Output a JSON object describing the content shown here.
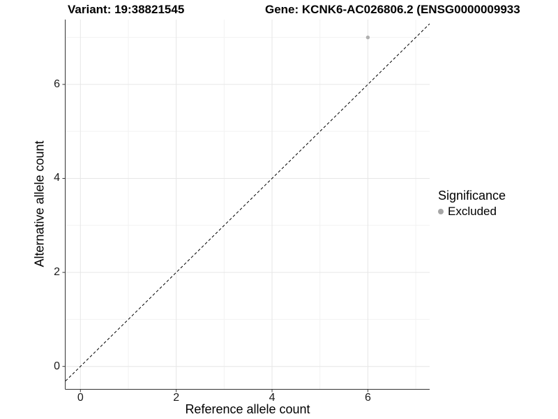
{
  "chart_data": {
    "type": "scatter",
    "titles": {
      "variant": "Variant: 19:38821545",
      "gene": "Gene: KCNK6-AC026806.2 (ENSG0000009933"
    },
    "xlabel": "Reference allele count",
    "ylabel": "Alternative allele count",
    "xlim": [
      -0.31,
      7.29
    ],
    "ylim": [
      -0.48,
      7.38
    ],
    "x_major_ticks": [
      0,
      2,
      4,
      6
    ],
    "x_minor_ticks": [
      1,
      3,
      5,
      7
    ],
    "y_major_ticks": [
      0,
      2,
      4,
      6
    ],
    "y_minor_ticks": [
      1,
      3,
      5,
      7
    ],
    "grid": "major+minor",
    "points": [
      {
        "x": 6,
        "y": 7,
        "series": "Excluded"
      }
    ],
    "reference_line": {
      "type": "identity",
      "slope": 1,
      "intercept": 0,
      "style": "dashed"
    },
    "legend": {
      "title": "Significance",
      "position": "right",
      "items": [
        {
          "label": "Excluded",
          "marker": "circle"
        }
      ]
    },
    "colors": {
      "point": "#b0b0b0",
      "legend_marker": "#a6a6a6",
      "grid_major": "#e6e6e6",
      "grid_minor": "#f2f2f2",
      "axis_line": "#333333",
      "reference_line": "#000000",
      "text": "#000000"
    }
  }
}
